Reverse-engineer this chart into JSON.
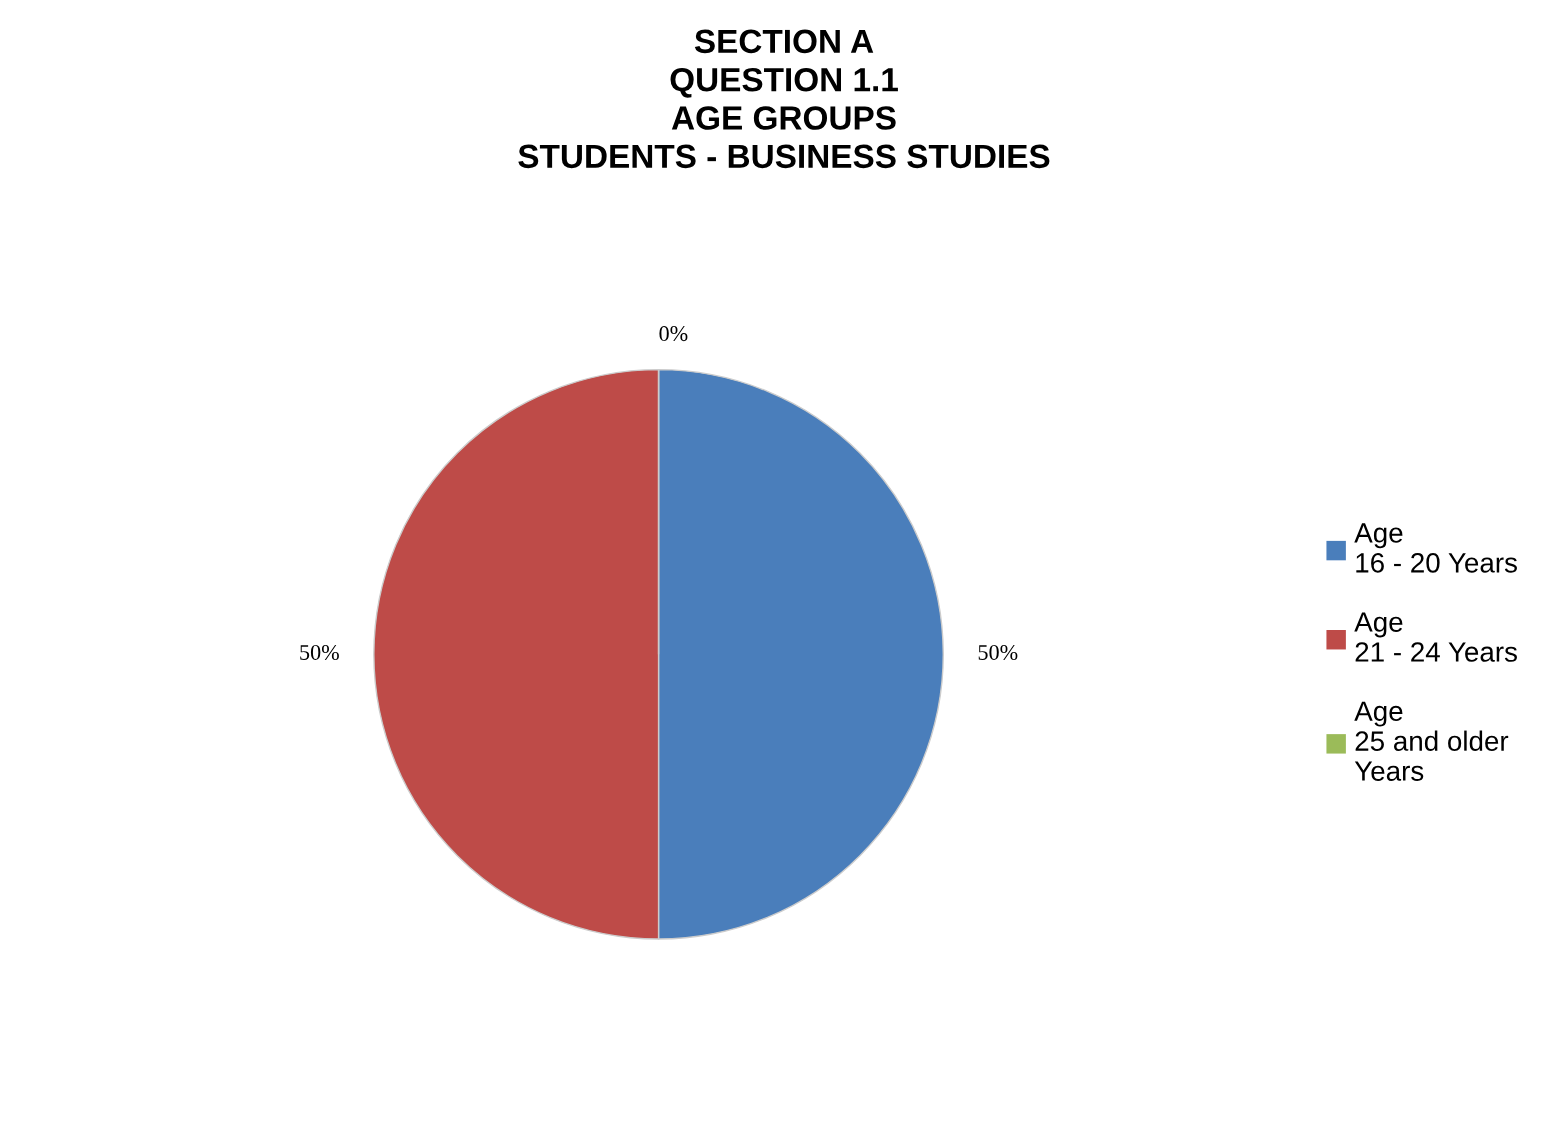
{
  "chart_data": {
    "type": "pie",
    "title": "SECTION A\nQUESTION 1.1\nAGE GROUPS\nSTUDENTS - BUSINESS STUDIES",
    "categories": [
      "Age\n16 - 20 Years",
      "Age\n21 - 24 Years",
      "Age\n25 and older\nYears"
    ],
    "values": [
      50,
      50,
      0
    ],
    "value_labels": [
      "50%",
      "50%",
      "0%"
    ],
    "colors": [
      "#4a7ebb",
      "#be4b48",
      "#9bbb59"
    ],
    "legend": "right"
  }
}
